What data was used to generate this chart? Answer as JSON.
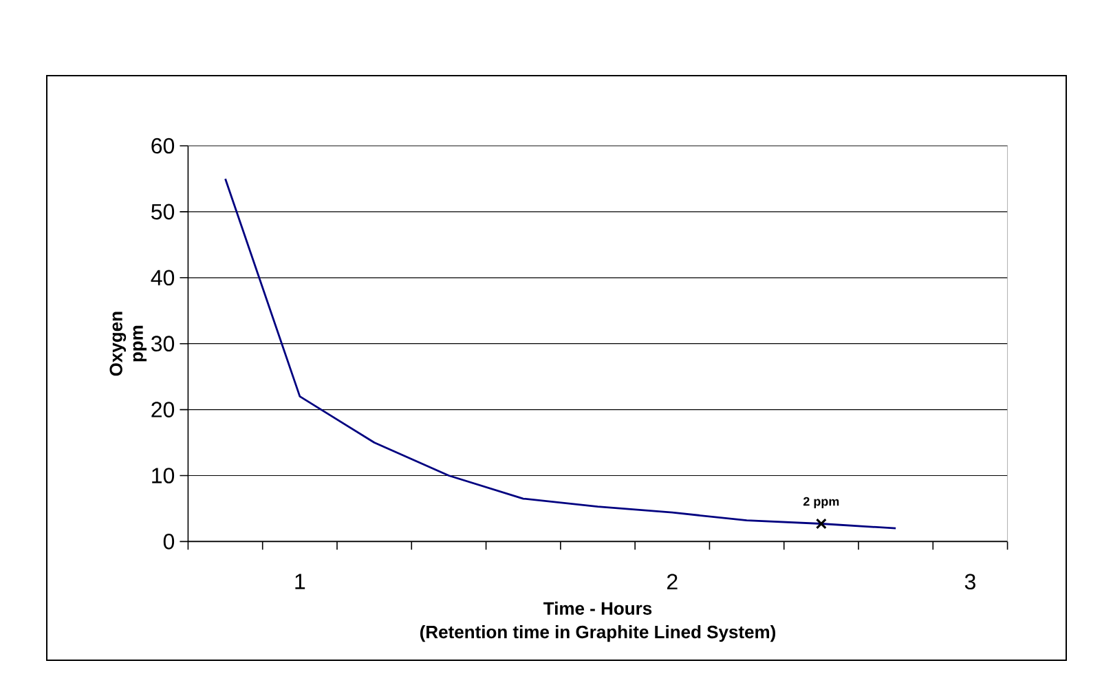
{
  "chart_data": {
    "type": "line",
    "xlabel": "Time - Hours",
    "ylabel": "Oxygen ppm",
    "categories": [
      null,
      "1",
      null,
      null,
      null,
      null,
      "2",
      null,
      null,
      null,
      "3"
    ],
    "series": [
      {
        "color": "#000080",
        "marker": "none",
        "values": [
          55,
          22,
          15,
          10,
          6.5,
          5.3,
          4.4,
          3.2,
          2.7,
          2.0,
          null
        ]
      },
      {
        "type": "scatter",
        "color": "#000000",
        "marker": "cross",
        "values": [
          null,
          null,
          null,
          null,
          null,
          null,
          null,
          null,
          2.7,
          null,
          null
        ]
      }
    ],
    "ylim": [
      0,
      60
    ],
    "yticks": [
      0,
      10,
      20,
      30,
      40,
      50,
      60
    ],
    "grid": "y",
    "annotations": [
      "(Retention time in Graphite Lined System)",
      {
        "text": "2 ppm",
        "y": 2.7
      }
    ]
  }
}
